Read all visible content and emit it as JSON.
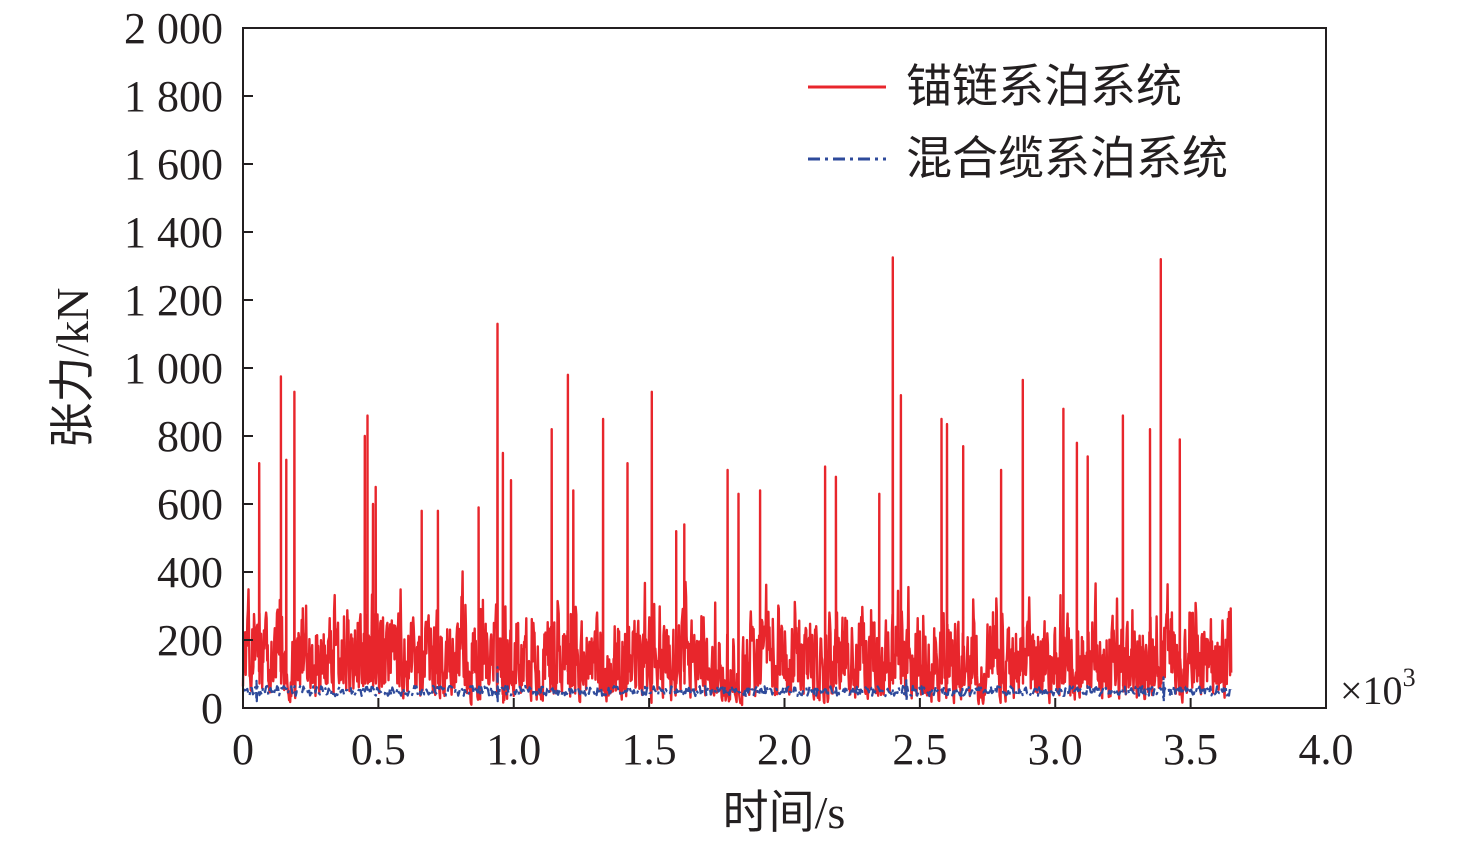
{
  "chart_data": {
    "type": "line",
    "title": "",
    "xlabel": "时间/s",
    "ylabel": "张力/kN",
    "x_multiplier_label": "×10",
    "x_multiplier_exp": "3",
    "xlim": [
      0,
      4.0
    ],
    "ylim": [
      0,
      2000
    ],
    "x_ticks": [
      "0",
      "0.5",
      "1.0",
      "1.5",
      "2.0",
      "2.5",
      "3.0",
      "3.5",
      "4.0"
    ],
    "x_tick_values": [
      0,
      0.5,
      1.0,
      1.5,
      2.0,
      2.5,
      3.0,
      3.5,
      4.0
    ],
    "y_ticks": [
      "0",
      "200",
      "400",
      "600",
      "800",
      "1 000",
      "1 200",
      "1 400",
      "1 600",
      "1 800",
      "2 000"
    ],
    "y_tick_values": [
      0,
      200,
      400,
      600,
      800,
      1000,
      1200,
      1400,
      1600,
      1800,
      2000
    ],
    "grid": false,
    "legend_position": "top-right",
    "series": [
      {
        "name": "锚链系泊系统",
        "color": "#e8262c",
        "style": "solid",
        "x_range": [
          0,
          3.65
        ],
        "baseline": 180,
        "spread": 95,
        "peaks": [
          {
            "x": 0.06,
            "y": 720
          },
          {
            "x": 0.14,
            "y": 975
          },
          {
            "x": 0.16,
            "y": 730
          },
          {
            "x": 0.19,
            "y": 930
          },
          {
            "x": 0.45,
            "y": 800
          },
          {
            "x": 0.46,
            "y": 860
          },
          {
            "x": 0.48,
            "y": 600
          },
          {
            "x": 0.49,
            "y": 650
          },
          {
            "x": 0.66,
            "y": 580
          },
          {
            "x": 0.72,
            "y": 580
          },
          {
            "x": 0.87,
            "y": 590
          },
          {
            "x": 0.94,
            "y": 1130
          },
          {
            "x": 0.96,
            "y": 750
          },
          {
            "x": 0.99,
            "y": 670
          },
          {
            "x": 1.14,
            "y": 820
          },
          {
            "x": 1.2,
            "y": 980
          },
          {
            "x": 1.22,
            "y": 640
          },
          {
            "x": 1.33,
            "y": 850
          },
          {
            "x": 1.42,
            "y": 720
          },
          {
            "x": 1.51,
            "y": 930
          },
          {
            "x": 1.6,
            "y": 520
          },
          {
            "x": 1.63,
            "y": 540
          },
          {
            "x": 1.79,
            "y": 700
          },
          {
            "x": 1.83,
            "y": 630
          },
          {
            "x": 1.91,
            "y": 640
          },
          {
            "x": 2.15,
            "y": 710
          },
          {
            "x": 2.19,
            "y": 680
          },
          {
            "x": 2.35,
            "y": 630
          },
          {
            "x": 2.4,
            "y": 1325
          },
          {
            "x": 2.43,
            "y": 920
          },
          {
            "x": 2.58,
            "y": 850
          },
          {
            "x": 2.6,
            "y": 835
          },
          {
            "x": 2.66,
            "y": 770
          },
          {
            "x": 2.8,
            "y": 700
          },
          {
            "x": 2.88,
            "y": 965
          },
          {
            "x": 3.03,
            "y": 880
          },
          {
            "x": 3.08,
            "y": 780
          },
          {
            "x": 3.12,
            "y": 740
          },
          {
            "x": 3.25,
            "y": 860
          },
          {
            "x": 3.35,
            "y": 820
          },
          {
            "x": 3.39,
            "y": 1320
          },
          {
            "x": 3.46,
            "y": 790
          }
        ]
      },
      {
        "name": "混合缆系泊系统",
        "color": "#2e4a9b",
        "style": "dash-dot",
        "x_range": [
          0,
          3.65
        ],
        "baseline": 50,
        "spread": 15,
        "peaks": [
          {
            "x": 0.94,
            "y": 120
          },
          {
            "x": 0.05,
            "y": 80
          },
          {
            "x": 2.45,
            "y": 85
          },
          {
            "x": 3.4,
            "y": 90
          }
        ]
      }
    ]
  }
}
